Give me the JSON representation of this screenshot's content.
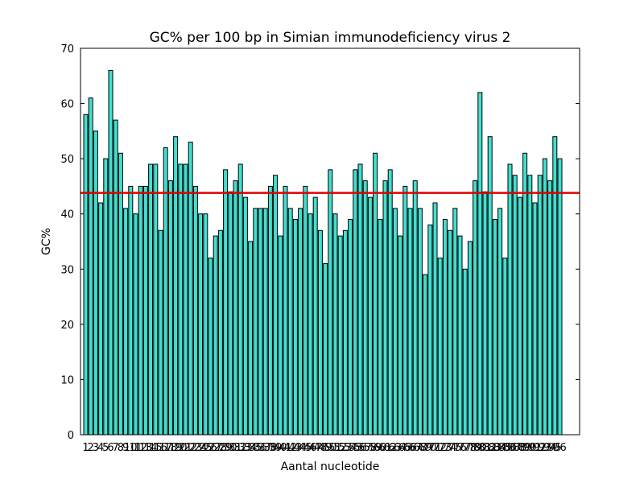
{
  "chart_data": {
    "type": "bar",
    "title": "GC% per 100 bp in Simian immunodeficiency virus 2",
    "x_label": "Aantal nucleotide",
    "y_label": "GC%",
    "categories": [
      "1",
      "2",
      "3",
      "4",
      "5",
      "6",
      "7",
      "8",
      "9",
      "10",
      "11",
      "12",
      "13",
      "14",
      "15",
      "16",
      "17",
      "18",
      "19",
      "20",
      "21",
      "22",
      "23",
      "24",
      "25",
      "26",
      "27",
      "28",
      "29",
      "30",
      "31",
      "32",
      "33",
      "34",
      "35",
      "36",
      "37",
      "38",
      "39",
      "40",
      "41",
      "42",
      "43",
      "44",
      "45",
      "46",
      "47",
      "48",
      "49",
      "50",
      "51",
      "52",
      "53",
      "54",
      "55",
      "56",
      "57",
      "58",
      "59",
      "60",
      "61",
      "62",
      "63",
      "64",
      "65",
      "66",
      "67",
      "68",
      "69",
      "70",
      "71",
      "72",
      "73",
      "74",
      "75",
      "76",
      "77",
      "78",
      "79",
      "80",
      "81",
      "82",
      "83",
      "84",
      "85",
      "86",
      "87",
      "88",
      "89",
      "90",
      "91",
      "92",
      "93",
      "94",
      "95",
      "96"
    ],
    "values": [
      58,
      61,
      55,
      42,
      50,
      66,
      57,
      51,
      41,
      45,
      40,
      45,
      45,
      49,
      49,
      37,
      52,
      46,
      54,
      49,
      49,
      53,
      45,
      40,
      40,
      32,
      36,
      37,
      48,
      44,
      46,
      49,
      43,
      35,
      41,
      41,
      41,
      45,
      47,
      36,
      45,
      41,
      39,
      41,
      45,
      40,
      43,
      37,
      31,
      48,
      40,
      36,
      37,
      39,
      48,
      49,
      46,
      43,
      51,
      39,
      46,
      48,
      41,
      36,
      45,
      41,
      46,
      41,
      29,
      38,
      42,
      32,
      39,
      37,
      41,
      36,
      30,
      35,
      46,
      62,
      44,
      54,
      39,
      41,
      32,
      49,
      47,
      43,
      51,
      47,
      42,
      47,
      50,
      46,
      54,
      50
    ],
    "color": "#40e0d0",
    "mean_line": 43.8,
    "mean_color": "#e00000",
    "ylim": [
      0,
      70
    ],
    "yticks": [
      0,
      10,
      20,
      30,
      40,
      50,
      60,
      70
    ]
  }
}
